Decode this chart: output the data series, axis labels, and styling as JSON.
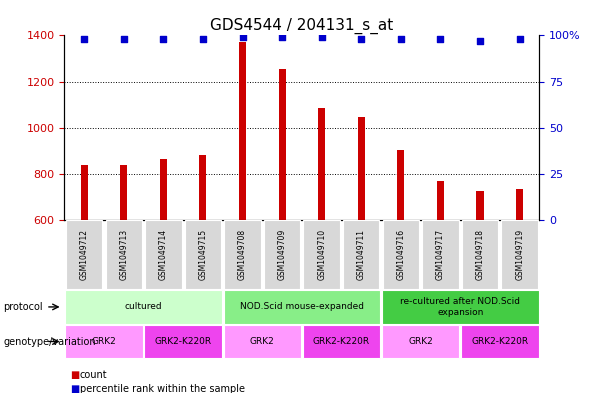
{
  "title": "GDS4544 / 204131_s_at",
  "samples": [
    "GSM1049712",
    "GSM1049713",
    "GSM1049714",
    "GSM1049715",
    "GSM1049708",
    "GSM1049709",
    "GSM1049710",
    "GSM1049711",
    "GSM1049716",
    "GSM1049717",
    "GSM1049718",
    "GSM1049719"
  ],
  "counts": [
    840,
    838,
    865,
    880,
    1370,
    1255,
    1085,
    1047,
    905,
    770,
    728,
    735
  ],
  "percentiles": [
    98,
    98,
    98,
    98,
    99,
    99,
    99,
    98,
    98,
    98,
    97,
    98
  ],
  "ylim_left": [
    600,
    1400
  ],
  "ylim_right": [
    0,
    100
  ],
  "yticks_left": [
    600,
    800,
    1000,
    1200,
    1400
  ],
  "yticks_right": [
    0,
    25,
    50,
    75,
    100
  ],
  "bar_color": "#cc0000",
  "dot_color": "#0000cc",
  "bg_color": "#ffffff",
  "sample_box_color": "#d8d8d8",
  "protocol_groups": [
    {
      "label": "cultured",
      "start": 0,
      "end": 3,
      "color": "#ccffcc"
    },
    {
      "label": "NOD.Scid mouse-expanded",
      "start": 4,
      "end": 7,
      "color": "#88ee88"
    },
    {
      "label": "re-cultured after NOD.Scid\nexpansion",
      "start": 8,
      "end": 11,
      "color": "#44cc44"
    }
  ],
  "genotype_groups": [
    {
      "label": "GRK2",
      "start": 0,
      "end": 1,
      "color": "#ff99ff"
    },
    {
      "label": "GRK2-K220R",
      "start": 2,
      "end": 3,
      "color": "#ee44ee"
    },
    {
      "label": "GRK2",
      "start": 4,
      "end": 5,
      "color": "#ff99ff"
    },
    {
      "label": "GRK2-K220R",
      "start": 6,
      "end": 7,
      "color": "#ee44ee"
    },
    {
      "label": "GRK2",
      "start": 8,
      "end": 9,
      "color": "#ff99ff"
    },
    {
      "label": "GRK2-K220R",
      "start": 10,
      "end": 11,
      "color": "#ee44ee"
    }
  ],
  "protocol_label": "protocol",
  "genotype_label": "genotype/variation",
  "legend_count_label": "count",
  "legend_pct_label": "percentile rank within the sample",
  "title_fontsize": 11,
  "axis_label_color_left": "#cc0000",
  "axis_label_color_right": "#0000cc",
  "bar_width": 0.18,
  "dot_size": 25
}
